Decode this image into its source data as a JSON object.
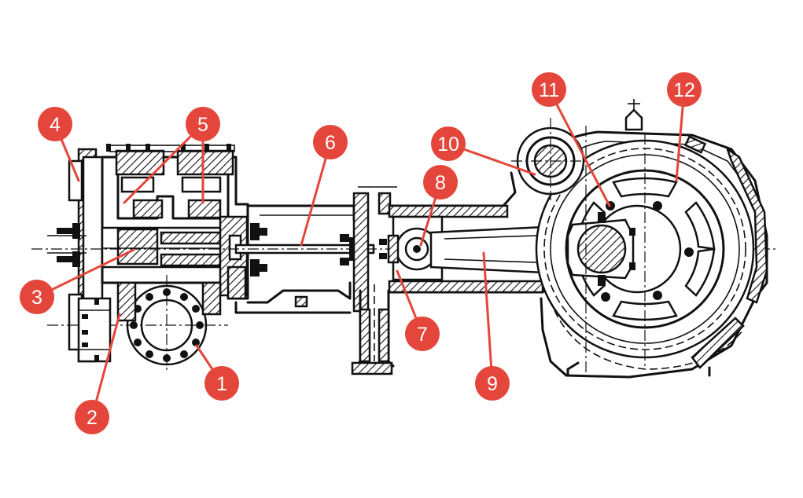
{
  "diagram": {
    "colors": {
      "ink": "#111111",
      "marker": "#e4463b",
      "marker_text": "#ffffff",
      "background": "#ffffff"
    },
    "callouts": [
      {
        "id": "1",
        "label": "1"
      },
      {
        "id": "2",
        "label": "2"
      },
      {
        "id": "3",
        "label": "3"
      },
      {
        "id": "4",
        "label": "4"
      },
      {
        "id": "5",
        "label": "5"
      },
      {
        "id": "6",
        "label": "6"
      },
      {
        "id": "7",
        "label": "7"
      },
      {
        "id": "8",
        "label": "8"
      },
      {
        "id": "9",
        "label": "9"
      },
      {
        "id": "10",
        "label": "10"
      },
      {
        "id": "11",
        "label": "11"
      },
      {
        "id": "12",
        "label": "12"
      }
    ]
  }
}
